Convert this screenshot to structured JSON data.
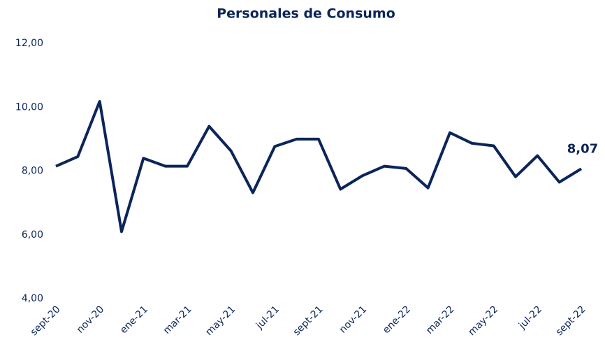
{
  "chart_data": {
    "type": "line",
    "title": "Personales de Consumo",
    "categories": [
      "sept-20",
      null,
      "nov-20",
      null,
      "ene-21",
      null,
      "mar-21",
      null,
      "may-21",
      null,
      "jul-21",
      null,
      "sept-21",
      null,
      "nov-21",
      null,
      "ene-22",
      null,
      "mar-22",
      null,
      "may-22",
      null,
      "jul-22",
      null,
      "sept-22"
    ],
    "series": [
      {
        "name": "Personales de Consumo",
        "color": "#0b2559",
        "values": [
          8.15,
          8.45,
          10.18,
          6.1,
          8.4,
          8.15,
          8.15,
          9.4,
          8.63,
          7.32,
          8.77,
          9.0,
          9.0,
          7.43,
          7.85,
          8.15,
          8.08,
          7.47,
          9.2,
          8.87,
          8.79,
          7.82,
          8.48,
          7.65,
          8.07
        ],
        "value_labels": [
          null,
          null,
          null,
          null,
          null,
          null,
          null,
          null,
          null,
          null,
          null,
          null,
          null,
          null,
          null,
          null,
          null,
          null,
          null,
          null,
          null,
          null,
          null,
          null,
          "8,07"
        ]
      }
    ],
    "ylim": [
      4,
      12
    ],
    "yticks": [
      {
        "value": 4,
        "label": "4,00"
      },
      {
        "value": 6,
        "label": "6,00"
      },
      {
        "value": 8,
        "label": "8,00"
      },
      {
        "value": 10,
        "label": "10,00"
      },
      {
        "value": 12,
        "label": "12,00"
      }
    ],
    "grid": false
  }
}
